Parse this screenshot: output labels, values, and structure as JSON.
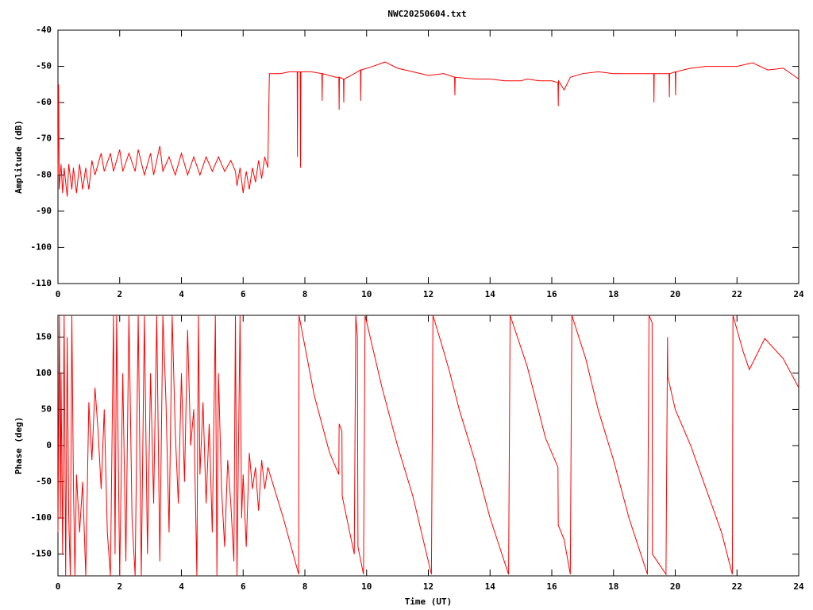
{
  "chart_data": [
    {
      "type": "line",
      "title": "NWC20250604.txt",
      "ylabel": "Amplitude (dB)",
      "color": "#ff0000",
      "xlim": [
        0,
        24
      ],
      "xticks": [
        0,
        2,
        4,
        6,
        8,
        10,
        12,
        14,
        16,
        18,
        20,
        22,
        24
      ],
      "ylim": [
        -110,
        -40
      ],
      "yticks": [
        -40,
        -50,
        -60,
        -70,
        -80,
        -90,
        -100,
        -110
      ],
      "x": [
        0,
        0.02,
        0.04,
        0.1,
        0.15,
        0.2,
        0.3,
        0.35,
        0.45,
        0.5,
        0.6,
        0.7,
        0.8,
        0.9,
        1.0,
        1.1,
        1.2,
        1.4,
        1.5,
        1.7,
        1.8,
        2.0,
        2.1,
        2.3,
        2.5,
        2.6,
        2.8,
        3.0,
        3.1,
        3.3,
        3.4,
        3.6,
        3.8,
        4.0,
        4.2,
        4.4,
        4.6,
        4.8,
        5.0,
        5.2,
        5.4,
        5.6,
        5.75,
        5.8,
        5.9,
        6.0,
        6.1,
        6.2,
        6.3,
        6.4,
        6.5,
        6.6,
        6.7,
        6.8,
        6.85,
        7.2,
        7.5,
        7.75,
        7.76,
        7.77,
        7.85,
        7.86,
        7.87,
        8.2,
        8.55,
        8.56,
        8.57,
        9.0,
        9.1,
        9.11,
        9.12,
        9.25,
        9.26,
        9.27,
        9.5,
        9.8,
        9.81,
        9.82,
        10.2,
        10.6,
        11,
        11.5,
        12,
        12.5,
        12.85,
        12.86,
        12.87,
        13.5,
        14,
        14.5,
        15,
        15.2,
        15.6,
        16,
        16.2,
        16.21,
        16.22,
        16.4,
        16.6,
        17,
        17.5,
        18,
        18.5,
        19,
        19.3,
        19.31,
        19.32,
        19.8,
        19.81,
        19.82,
        20.0,
        20.01,
        20.02,
        20.5,
        21,
        21.5,
        22,
        22.5,
        23,
        23.5,
        24
      ],
      "values": [
        -80,
        -55,
        -84,
        -77,
        -85,
        -78,
        -86,
        -77,
        -84,
        -78,
        -85,
        -77,
        -84,
        -78,
        -84,
        -76,
        -80,
        -74,
        -79,
        -74,
        -79,
        -73,
        -79,
        -74,
        -79,
        -73,
        -80,
        -74,
        -80,
        -72,
        -79,
        -75,
        -80,
        -74,
        -80,
        -75,
        -80,
        -75,
        -79,
        -75,
        -79,
        -76,
        -79,
        -83,
        -78,
        -85,
        -79,
        -84,
        -78,
        -82,
        -76,
        -81,
        -75,
        -78,
        -52,
        -52,
        -51.5,
        -51.5,
        -75,
        -51.5,
        -51.5,
        -78,
        -51.5,
        -51.5,
        -52,
        -59.5,
        -52,
        -53,
        -53,
        -62,
        -53,
        -53.5,
        -60,
        -53.5,
        -52.5,
        -51,
        -59.5,
        -51,
        -50,
        -48.8,
        -50.5,
        -51.5,
        -52.5,
        -52,
        -53,
        -58,
        -53,
        -53.5,
        -53.5,
        -54,
        -54,
        -53.5,
        -54,
        -54,
        -54.5,
        -61,
        -54,
        -56.5,
        -53,
        -52,
        -51.5,
        -52,
        -52,
        -52,
        -52,
        -60,
        -52,
        -52,
        -58.5,
        -52,
        -51.5,
        -58,
        -51.5,
        -50.5,
        -50,
        -50,
        -50,
        -49,
        -51,
        -50.5,
        -53.5
      ]
    },
    {
      "type": "line",
      "ylabel": "Phase (deg)",
      "xlabel": "Time (UT)",
      "color": "#ff0000",
      "xlim": [
        0,
        24
      ],
      "xticks": [
        0,
        2,
        4,
        6,
        8,
        10,
        12,
        14,
        16,
        18,
        20,
        22,
        24
      ],
      "ylim": [
        -180,
        180
      ],
      "yticks": [
        150,
        100,
        50,
        0,
        -50,
        -100,
        -150
      ],
      "x": [
        0,
        0.05,
        0.08,
        0.1,
        0.15,
        0.2,
        0.25,
        0.3,
        0.35,
        0.4,
        0.45,
        0.5,
        0.55,
        0.6,
        0.7,
        0.8,
        0.9,
        1.0,
        1.1,
        1.2,
        1.3,
        1.4,
        1.5,
        1.6,
        1.7,
        1.8,
        1.85,
        1.9,
        2.0,
        2.1,
        2.2,
        2.3,
        2.4,
        2.5,
        2.6,
        2.7,
        2.8,
        2.9,
        3.0,
        3.1,
        3.2,
        3.3,
        3.4,
        3.5,
        3.6,
        3.7,
        3.8,
        3.9,
        4.0,
        4.1,
        4.2,
        4.3,
        4.4,
        4.5,
        4.55,
        4.6,
        4.7,
        4.8,
        4.9,
        5.0,
        5.1,
        5.15,
        5.2,
        5.3,
        5.4,
        5.5,
        5.6,
        5.7,
        5.75,
        5.8,
        5.9,
        5.95,
        6.0,
        6.1,
        6.2,
        6.3,
        6.4,
        6.5,
        6.6,
        6.7,
        6.8,
        7.3,
        7.8,
        7.81,
        8.3,
        8.8,
        9.1,
        9.11,
        9.2,
        9.21,
        9.6,
        9.65,
        9.7,
        9.72,
        9.9,
        9.95,
        10.5,
        11,
        11.5,
        12.1,
        12.15,
        12.5,
        12.7,
        13,
        13.5,
        14,
        14.6,
        14.65,
        15.2,
        15.5,
        15.8,
        16.2,
        16.21,
        16.4,
        16.6,
        16.65,
        17.1,
        17.5,
        18,
        18.5,
        19.1,
        19.15,
        19.25,
        19.26,
        19.7,
        19.75,
        19.76,
        20,
        20.5,
        21,
        21.5,
        21.85,
        21.87,
        22.2,
        22.4,
        22.9,
        23.5,
        24
      ],
      "values": [
        -120,
        180,
        -100,
        100,
        -150,
        180,
        -180,
        150,
        -100,
        -180,
        180,
        -50,
        -180,
        -40,
        -120,
        -50,
        -180,
        60,
        -20,
        80,
        20,
        -60,
        50,
        -120,
        -180,
        180,
        -150,
        180,
        -180,
        100,
        -160,
        180,
        -100,
        -180,
        180,
        -180,
        180,
        -150,
        100,
        -80,
        180,
        -160,
        180,
        60,
        -120,
        180,
        20,
        -80,
        100,
        -50,
        160,
        0,
        50,
        -180,
        180,
        -40,
        60,
        -80,
        30,
        -120,
        180,
        -180,
        100,
        -60,
        -140,
        -20,
        -80,
        -160,
        180,
        -180,
        180,
        -100,
        -40,
        -140,
        -10,
        -60,
        -30,
        -90,
        -20,
        -60,
        -30,
        -100,
        -178,
        180,
        70,
        -10,
        -40,
        30,
        20,
        -70,
        -150,
        180,
        150,
        -140,
        -178,
        180,
        80,
        0,
        -70,
        -178,
        180,
        130,
        100,
        50,
        -20,
        -100,
        -178,
        180,
        110,
        60,
        10,
        -30,
        -110,
        -130,
        -178,
        180,
        120,
        50,
        -20,
        -100,
        -178,
        180,
        170,
        -150,
        -178,
        150,
        95,
        50,
        0,
        -60,
        -120,
        -178,
        180,
        130,
        105,
        148,
        120,
        80
      ]
    }
  ]
}
